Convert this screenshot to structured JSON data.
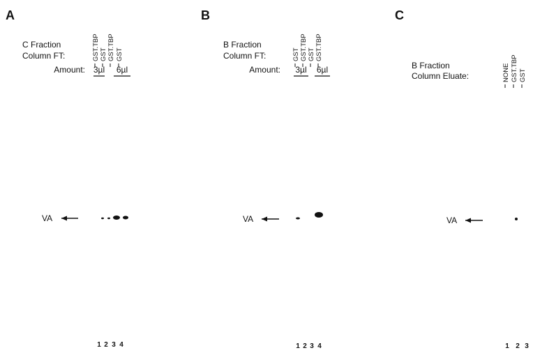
{
  "panels": [
    {
      "label": "A",
      "fraction": "C Fraction",
      "column": "Column FT:",
      "amount_label": "Amount:",
      "lanes": [
        "GST.TBP",
        "GST",
        "GST.TBP",
        "GST"
      ],
      "amounts": [
        "3µl",
        "6µl"
      ],
      "marker": "VA",
      "lane_numbers": [
        "1",
        "2",
        "3",
        "4"
      ]
    },
    {
      "label": "B",
      "fraction": "B Fraction",
      "column": "Column FT:",
      "amount_label": "Amount:",
      "lanes": [
        "GST",
        "GST.TBP",
        "GST",
        "GST.TBP"
      ],
      "amounts": [
        "3µl",
        "6µl"
      ],
      "marker": "VA",
      "lane_numbers": [
        "1",
        "2",
        "3",
        "4"
      ]
    },
    {
      "label": "C",
      "fraction": "B Fraction",
      "column": "Column Eluate:",
      "lanes": [
        "NONE",
        "GST.TBP",
        "GST"
      ],
      "marker": "VA",
      "lane_numbers": [
        "1",
        "2",
        "3"
      ]
    }
  ]
}
